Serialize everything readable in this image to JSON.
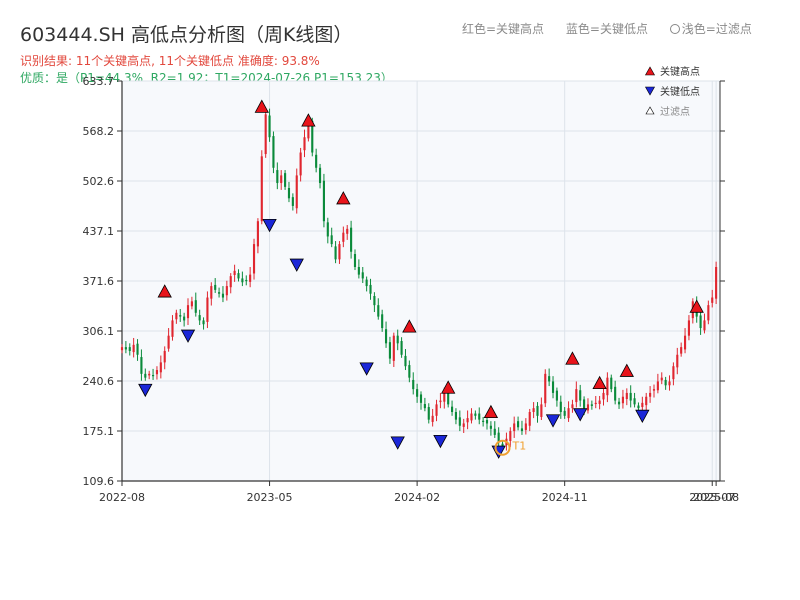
{
  "header": {
    "title": "603444.SH 高低点分析图（周K线图）",
    "legend_red": "红色=关键高点",
    "legend_blue": "蓝色=关键低点",
    "legend_light": "浅色=过滤点",
    "result": "识别结果: 11个关键高点, 11个关键低点  准确度: 93.8%",
    "quality": "优质：是（P1=44.3%, R2=1.92；T1=2024-07-26 P1=153.23）"
  },
  "colors": {
    "up": "#e0262f",
    "down": "#0a8a3a",
    "high_marker": "#e8141b",
    "low_marker": "#1b27d8",
    "t1": "#f0a030",
    "axis": "#333333",
    "grid": "#dde3ea",
    "plot_bg": "#f7f9fc"
  },
  "chart_data": {
    "type": "candlestick",
    "x_range": [
      0,
      154
    ],
    "ylim": [
      109.6,
      633.7
    ],
    "y_ticks": [
      "633.7",
      "568.2",
      "502.6",
      "437.1",
      "371.6",
      "306.1",
      "240.6",
      "175.1",
      "109.6"
    ],
    "x_ticks": [
      {
        "x": 0,
        "label": "2022-08"
      },
      {
        "x": 38,
        "label": "2023-05"
      },
      {
        "x": 76,
        "label": "2024-02"
      },
      {
        "x": 114,
        "label": "2024-11"
      },
      {
        "x": 152,
        "label": "2025-07"
      },
      {
        "x": 153,
        "label": "2025-08"
      }
    ],
    "legend": {
      "high": "关键高点",
      "low": "关键低点",
      "filtered": "过滤点"
    },
    "t1": {
      "x": 98,
      "price": 153.23,
      "label": "T1"
    },
    "closes": [
      285,
      282,
      280,
      288,
      275,
      250,
      245,
      250,
      248,
      255,
      265,
      280,
      300,
      320,
      330,
      325,
      320,
      340,
      345,
      330,
      320,
      315,
      350,
      365,
      360,
      355,
      350,
      365,
      378,
      385,
      375,
      370,
      372,
      380,
      420,
      450,
      535,
      590,
      560,
      520,
      500,
      510,
      495,
      480,
      470,
      510,
      540,
      560,
      580,
      540,
      520,
      500,
      450,
      430,
      420,
      400,
      420,
      435,
      440,
      410,
      390,
      380,
      375,
      365,
      355,
      340,
      325,
      310,
      290,
      270,
      300,
      290,
      275,
      260,
      245,
      230,
      220,
      212,
      205,
      190,
      195,
      210,
      215,
      225,
      210,
      200,
      190,
      182,
      185,
      192,
      198,
      195,
      190,
      188,
      185,
      178,
      170,
      160,
      155,
      165,
      175,
      185,
      180,
      175,
      185,
      200,
      205,
      195,
      210,
      250,
      240,
      225,
      215,
      200,
      195,
      205,
      210,
      230,
      215,
      205,
      210,
      208,
      212,
      215,
      225,
      245,
      230,
      215,
      210,
      220,
      225,
      215,
      210,
      205,
      212,
      220,
      225,
      230,
      240,
      245,
      235,
      240,
      260,
      275,
      285,
      300,
      320,
      345,
      325,
      310,
      320,
      340,
      350,
      390
    ],
    "highs": [
      {
        "x": 11,
        "price": 348
      },
      {
        "x": 36,
        "price": 590
      },
      {
        "x": 48,
        "price": 572
      },
      {
        "x": 57,
        "price": 470
      },
      {
        "x": 74,
        "price": 302
      },
      {
        "x": 84,
        "price": 222
      },
      {
        "x": 95,
        "price": 190
      },
      {
        "x": 116,
        "price": 260
      },
      {
        "x": 123,
        "price": 228
      },
      {
        "x": 130,
        "price": 244
      },
      {
        "x": 148,
        "price": 328
      }
    ],
    "lows": [
      {
        "x": 6,
        "price": 239
      },
      {
        "x": 17,
        "price": 310
      },
      {
        "x": 38,
        "price": 455
      },
      {
        "x": 45,
        "price": 403
      },
      {
        "x": 63,
        "price": 267
      },
      {
        "x": 71,
        "price": 170
      },
      {
        "x": 82,
        "price": 172
      },
      {
        "x": 97,
        "price": 158
      },
      {
        "x": 111,
        "price": 199
      },
      {
        "x": 118,
        "price": 207
      },
      {
        "x": 134,
        "price": 205
      }
    ]
  }
}
